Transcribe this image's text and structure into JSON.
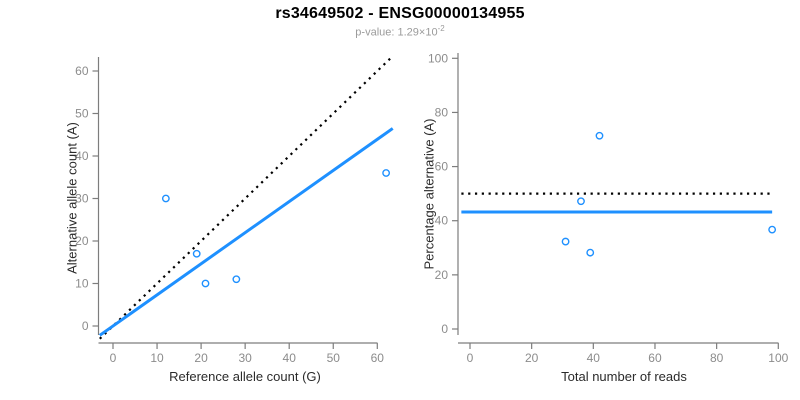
{
  "header": {
    "title": "rs34649502 - ENSG00000134955",
    "pvalue_prefix": "p-value: 1.29×10",
    "pvalue_exponent": "-2"
  },
  "colors": {
    "accent": "#1E90FF",
    "identity_line": "#000000",
    "axis": "#7d7d7d",
    "tick_label": "#8c8c8c",
    "axis_title": "#2b2b2b",
    "subtitle": "#9b9b9b"
  },
  "chart_data": [
    {
      "type": "scatter",
      "panel": "reference-vs-alternative",
      "xlabel": "Reference allele count (G)",
      "ylabel": "Alternative allele count (A)",
      "xlim": [
        0,
        60
      ],
      "ylim": [
        0,
        60
      ],
      "xticks": [
        0,
        10,
        20,
        30,
        40,
        50,
        60
      ],
      "yticks": [
        0,
        10,
        20,
        30,
        40,
        50,
        60
      ],
      "grid": false,
      "legend": null,
      "marker": "open-circle",
      "points": [
        [
          12,
          30
        ],
        [
          19,
          17
        ],
        [
          21,
          10
        ],
        [
          28,
          11
        ],
        [
          62,
          36
        ]
      ],
      "lines": [
        {
          "name": "identity",
          "style": "dotted",
          "color": "#000000",
          "slope": 1,
          "intercept": 0
        },
        {
          "name": "fit",
          "style": "solid",
          "color": "#1E90FF",
          "slope": 0.732,
          "intercept": 0
        }
      ]
    },
    {
      "type": "scatter",
      "panel": "reads-vs-percentage",
      "xlabel": "Total number of reads",
      "ylabel": "Percentage alternative (A)",
      "xlim": [
        0,
        100
      ],
      "ylim": [
        0,
        100
      ],
      "xticks": [
        0,
        20,
        40,
        60,
        80,
        100
      ],
      "yticks": [
        0,
        20,
        40,
        60,
        80,
        100
      ],
      "grid": false,
      "legend": null,
      "marker": "open-circle",
      "points": [
        [
          42,
          71.4
        ],
        [
          36,
          47.2
        ],
        [
          31,
          32.3
        ],
        [
          39,
          28.2
        ],
        [
          98,
          36.7
        ]
      ],
      "hlines": [
        {
          "name": "expected-50pct",
          "style": "dotted",
          "color": "#000000",
          "y": 50
        },
        {
          "name": "mean-percentage",
          "style": "solid",
          "color": "#1E90FF",
          "y": 43.2
        }
      ]
    }
  ]
}
